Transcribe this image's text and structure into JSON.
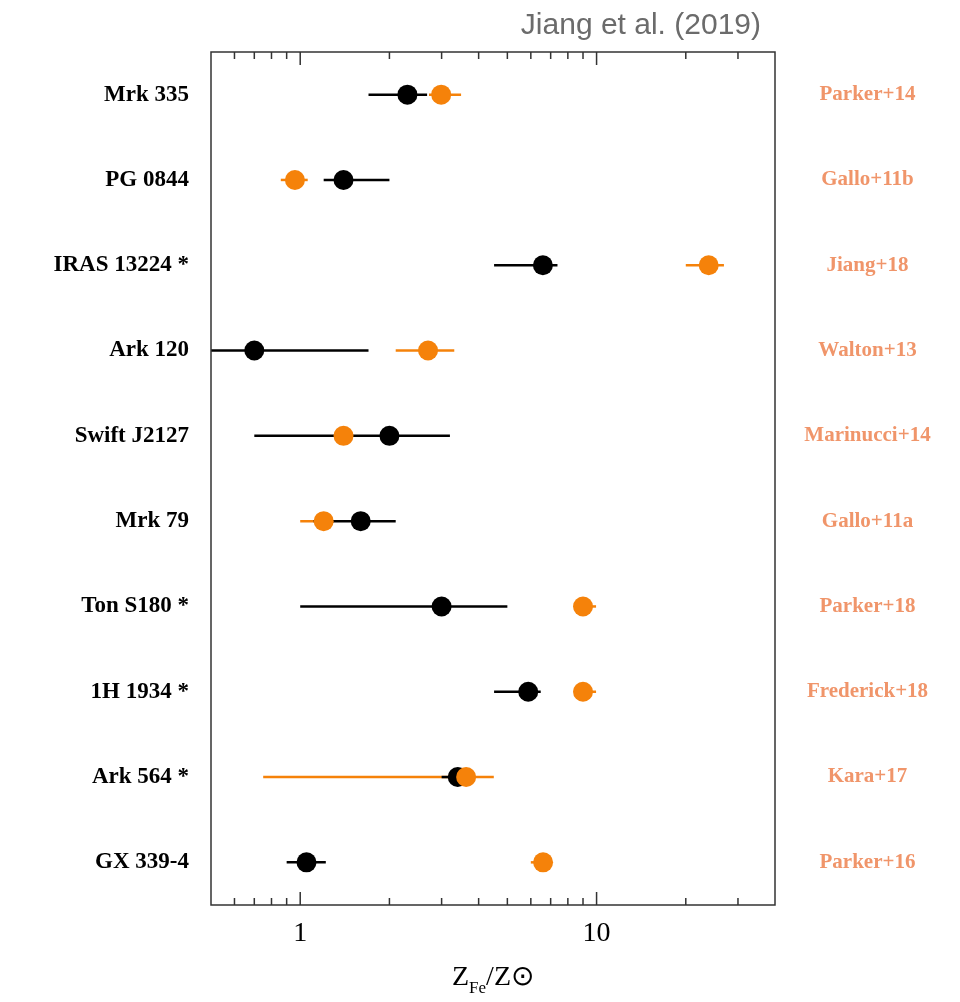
{
  "chart_data": {
    "type": "scatter",
    "title": "Jiang et al. (2019)",
    "xlabel": "Z$_{Fe}$/Z⊙",
    "categories": [
      "Mrk 335",
      "PG 0844",
      "IRAS 13224 *",
      "Ark 120",
      "Swift J2127",
      "Mrk 79",
      "Ton S180 *",
      "1H 1934 *",
      "Ark 564 *",
      "GX 339-4"
    ],
    "orientation": "horizontal",
    "log": "x",
    "xlim": [
      0.5,
      40
    ],
    "xticks": [
      {
        "value": 0.6,
        "label": null
      },
      {
        "value": 0.7,
        "label": null
      },
      {
        "value": 0.8,
        "label": null
      },
      {
        "value": 0.9,
        "label": null
      },
      1,
      {
        "value": 2,
        "label": null
      },
      {
        "value": 3,
        "label": null
      },
      {
        "value": 4,
        "label": null
      },
      {
        "value": 5,
        "label": null
      },
      {
        "value": 6,
        "label": null
      },
      {
        "value": 7,
        "label": null
      },
      {
        "value": 8,
        "label": null
      },
      {
        "value": 9,
        "label": null
      },
      10,
      {
        "value": 20,
        "label": null
      },
      {
        "value": 30,
        "label": null
      }
    ],
    "grid": false,
    "legend": false,
    "marker": "circle",
    "series": [
      {
        "color": "#f5820a",
        "values": [
          2.99,
          0.96,
          23.9,
          2.7,
          1.4,
          1.2,
          9.0,
          9.0,
          3.63,
          6.6
        ],
        "errors": [
          [
            2.72,
            3.49
          ],
          [
            0.86,
            1.06
          ],
          [
            20.0,
            26.9
          ],
          [
            2.1,
            3.31
          ],
          null,
          [
            1.0,
            1.3
          ],
          [
            9.0,
            9.96
          ],
          [
            9.0,
            9.96
          ],
          [
            0.75,
            4.5
          ],
          [
            6.0,
            6.6
          ]
        ]
      },
      {
        "color": "#000000",
        "values": [
          2.3,
          1.4,
          6.59,
          0.7,
          2.0,
          1.6,
          3.0,
          5.88,
          3.4,
          1.05
        ],
        "errors": [
          [
            1.7,
            2.68
          ],
          [
            1.2,
            2.0
          ],
          [
            4.51,
            7.38
          ],
          [
            0.5,
            1.7
          ],
          [
            0.7,
            3.2
          ],
          [
            1.11,
            2.1
          ],
          [
            1.0,
            5.0
          ],
          [
            4.51,
            6.48
          ],
          [
            3.0,
            3.4
          ],
          [
            0.9,
            1.22
          ]
        ]
      }
    ],
    "annotations": [
      "Parker+14",
      "Gallo+11b",
      "Jiang+18",
      "Walton+13",
      "Marinucci+14",
      "Gallo+11a",
      "Parker+18",
      "Frederick+18",
      "Kara+17",
      "Parker+16"
    ]
  }
}
